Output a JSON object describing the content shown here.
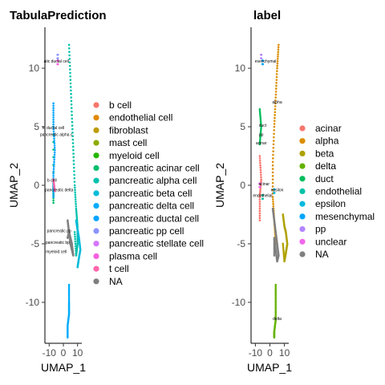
{
  "chart_data": [
    {
      "type": "scatter",
      "title": "TabulaPrediction",
      "xlabel": "UMAP_1",
      "ylabel": "UMAP_2",
      "xlim": [
        -13,
        13
      ],
      "ylim": [
        -13.5,
        13.5
      ],
      "xticks": [
        -10,
        0,
        10
      ],
      "xtick_labels": [
        "-10",
        "0",
        "10"
      ],
      "yticks": [
        -10,
        -5,
        0,
        5,
        10
      ],
      "grid": false,
      "legend_position": "right",
      "series": [
        {
          "name": "b cell",
          "color": "#F8766D",
          "x": [],
          "y": []
        },
        {
          "name": "endothelial cell",
          "color": "#E18A00",
          "x": [],
          "y": []
        },
        {
          "name": "fibroblast",
          "color": "#BE9C00",
          "x": [],
          "y": []
        },
        {
          "name": "mast cell",
          "color": "#8CAB00",
          "x": [],
          "y": []
        },
        {
          "name": "myeloid cell",
          "color": "#24B700",
          "x": [],
          "y": []
        },
        {
          "name": "pancreatic acinar cell",
          "color": "#00BE70",
          "x": [
            -7,
            -7,
            -7
          ],
          "y": [
            0.5,
            -1.5,
            5.0
          ]
        },
        {
          "name": "pancreatic alpha cell",
          "color": "#00C1AB",
          "x": [
            4,
            5,
            6,
            7,
            8,
            9,
            10,
            10,
            9,
            8
          ],
          "y": [
            12.0,
            9.0,
            6.0,
            3.0,
            0.0,
            -2.0,
            -3.5,
            -5.0,
            -6.0,
            -4.0
          ]
        },
        {
          "name": "pancreatic beta cell",
          "color": "#00BBDA",
          "x": [
            9,
            10,
            11,
            12,
            11,
            10
          ],
          "y": [
            -3.0,
            -3.8,
            -4.5,
            -5.5,
            -6.2,
            -7.0
          ]
        },
        {
          "name": "pancreatic delta cell",
          "color": "#00ACFC",
          "x": [
            4,
            4,
            4,
            3,
            3
          ],
          "y": [
            -8.5,
            -10.0,
            -11.0,
            -12.0,
            -13.0
          ]
        },
        {
          "name": "pancreatic ductal cell",
          "color": "#00A5FF",
          "x": [
            -7,
            -7,
            -6,
            -7,
            -7
          ],
          "y": [
            7.0,
            5.0,
            3.0,
            1.0,
            -1.0
          ]
        },
        {
          "name": "pancreatic pp cell",
          "color": "#8B93FF",
          "x": [
            -4
          ],
          "y": [
            11.0
          ]
        },
        {
          "name": "pancreatic stellate cell",
          "color": "#D575FE",
          "x": [],
          "y": []
        },
        {
          "name": "plasma cell",
          "color": "#F962DD",
          "x": [
            -4
          ],
          "y": [
            10.5
          ]
        },
        {
          "name": "t cell",
          "color": "#FF65AC",
          "x": [
            -6,
            -7
          ],
          "y": [
            -0.5,
            0.5
          ]
        },
        {
          "name": "NA",
          "color": "#7F7F7F",
          "x": [
            3,
            4,
            5,
            6,
            7,
            6,
            5,
            4,
            3
          ],
          "y": [
            -3.0,
            -4.0,
            -5.0,
            -5.5,
            -6.0,
            -5.0,
            -4.5,
            -4.0,
            -4.5
          ]
        }
      ],
      "annotations": [
        {
          "text": "atic ductal cell",
          "x": -5,
          "y": 10.5
        },
        {
          "text": "ic ductal cell",
          "x": -7,
          "y": 4.8
        },
        {
          "text": "pancreatic alpha c",
          "x": -5,
          "y": 4.2
        },
        {
          "text": "b cell",
          "x": -8,
          "y": 0.3
        },
        {
          "text": "pancreatic delta",
          "x": -3,
          "y": -0.5
        },
        {
          "text": "pancreatic pp",
          "x": -3,
          "y": -4.0
        },
        {
          "text": "pancreatic bp",
          "x": -4,
          "y": -5.0
        },
        {
          "text": "myeloid cell",
          "x": -5,
          "y": -5.8
        }
      ]
    },
    {
      "type": "scatter",
      "title": "label",
      "xlabel": "UMAP_1",
      "ylabel": "UMAP_2",
      "xlim": [
        -13,
        13
      ],
      "ylim": [
        -13.5,
        13.5
      ],
      "xticks": [
        -10,
        0,
        10
      ],
      "xtick_labels": [
        "-10",
        "0",
        "10"
      ],
      "yticks": [
        -10,
        -5,
        0,
        5,
        10
      ],
      "grid": false,
      "legend_position": "right",
      "series": [
        {
          "name": "acinar",
          "color": "#F8766D",
          "x": [
            -7,
            -6,
            -7,
            -7
          ],
          "y": [
            2.5,
            0.5,
            -1.0,
            -3.0
          ]
        },
        {
          "name": "alpha",
          "color": "#DB8E00",
          "x": [
            6,
            5,
            4,
            3,
            2,
            2,
            3,
            4
          ],
          "y": [
            12.0,
            10.0,
            7.5,
            5.0,
            2.0,
            -1.0,
            -3.0,
            -5.0
          ]
        },
        {
          "name": "beta",
          "color": "#AEA200",
          "x": [
            9,
            10,
            11,
            12,
            11,
            10,
            9
          ],
          "y": [
            -2.5,
            -3.5,
            -4.0,
            -5.0,
            -5.8,
            -6.5,
            -5.0
          ]
        },
        {
          "name": "delta",
          "color": "#64B200",
          "x": [
            4,
            4,
            4,
            3,
            3
          ],
          "y": [
            -8.5,
            -10.0,
            -11.5,
            -12.5,
            -13.0
          ]
        },
        {
          "name": "duct",
          "color": "#00BD5C",
          "x": [
            -7,
            -6,
            -7
          ],
          "y": [
            6.5,
            5.0,
            3.5
          ]
        },
        {
          "name": "endothelial",
          "color": "#00C1A7",
          "x": [
            -5
          ],
          "y": [
            -1.0
          ]
        },
        {
          "name": "epsilon",
          "color": "#00BADE",
          "x": [
            3
          ],
          "y": [
            -0.5
          ]
        },
        {
          "name": "mesenchymal",
          "color": "#00A6FF",
          "x": [
            -5
          ],
          "y": [
            10.5
          ]
        },
        {
          "name": "pp",
          "color": "#B385FF",
          "x": [
            -6
          ],
          "y": [
            11.0
          ]
        },
        {
          "name": "unclear",
          "color": "#EF67EB",
          "x": [
            -7
          ],
          "y": [
            0.0
          ]
        },
        {
          "name": "NA",
          "color": "#7F7F7F",
          "x": [
            2,
            3,
            4,
            5,
            6,
            5,
            4,
            3,
            3
          ],
          "y": [
            -2.0,
            -3.0,
            -4.0,
            -5.0,
            -6.0,
            -6.5,
            -5.5,
            -4.5,
            -6.0
          ]
        }
      ],
      "annotations": [
        {
          "text": "esenchymal",
          "x": -3,
          "y": 10.5
        },
        {
          "text": "alpha",
          "x": 5,
          "y": 7.0
        },
        {
          "text": "duct",
          "x": -5,
          "y": 5.0
        },
        {
          "text": "pp",
          "x": -6,
          "y": 4.2
        },
        {
          "text": "acinar",
          "x": -6,
          "y": 3.5
        },
        {
          "text": "acinar",
          "x": -4,
          "y": 0.0
        },
        {
          "text": "epsilon",
          "x": 5,
          "y": -0.5
        },
        {
          "text": "endothelial",
          "x": -5,
          "y": -1.0
        },
        {
          "text": "delta",
          "x": 5,
          "y": -11.5
        }
      ]
    }
  ]
}
